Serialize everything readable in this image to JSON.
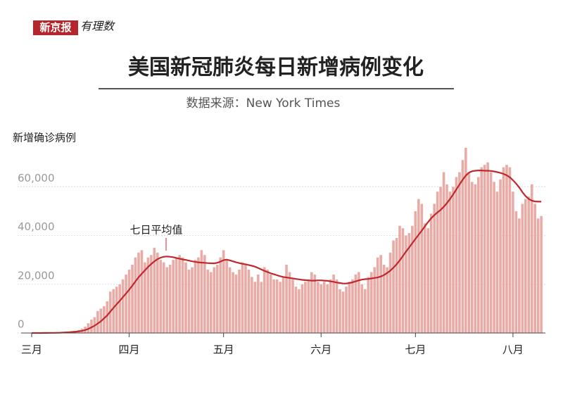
{
  "header": {
    "logo": "新京报",
    "logo_sub": "有理数"
  },
  "chart_data": {
    "type": "bar",
    "title": "美国新冠肺炎每日新增病例变化",
    "subtitle": "数据来源：New York Times",
    "y_label": "新增确诊病例",
    "categories": [
      "三月",
      null,
      null,
      null,
      null,
      null,
      null,
      null,
      null,
      null,
      null,
      null,
      null,
      null,
      null,
      null,
      null,
      null,
      null,
      null,
      null,
      null,
      null,
      null,
      null,
      null,
      null,
      null,
      null,
      null,
      null,
      "四月",
      null,
      null,
      null,
      null,
      null,
      null,
      null,
      null,
      null,
      null,
      null,
      null,
      null,
      null,
      null,
      null,
      null,
      null,
      null,
      null,
      null,
      null,
      null,
      null,
      null,
      null,
      null,
      null,
      null,
      "五月",
      null,
      null,
      null,
      null,
      null,
      null,
      null,
      null,
      null,
      null,
      null,
      null,
      null,
      null,
      null,
      null,
      null,
      null,
      null,
      null,
      null,
      null,
      null,
      null,
      null,
      null,
      null,
      null,
      null,
      null,
      "六月",
      null,
      null,
      null,
      null,
      null,
      null,
      null,
      null,
      null,
      null,
      null,
      null,
      null,
      null,
      null,
      null,
      null,
      null,
      null,
      null,
      null,
      null,
      null,
      null,
      null,
      null,
      null,
      null,
      null,
      "七月",
      null,
      null,
      null,
      null,
      null,
      null,
      null,
      null,
      null,
      null,
      null,
      null,
      null,
      null,
      null,
      null,
      null,
      null,
      null,
      null,
      null,
      null,
      null,
      null,
      null,
      null,
      null,
      null,
      null,
      null,
      "八月",
      null,
      null,
      null,
      null,
      null,
      null,
      null,
      null,
      null
    ],
    "series": [
      {
        "color": "#e9aba6",
        "values": [
          0,
          0,
          10,
          20,
          30,
          40,
          60,
          100,
          120,
          200,
          300,
          400,
          500,
          700,
          800,
          1200,
          1800,
          2600,
          4000,
          5500,
          6500,
          9000,
          10000,
          11000,
          13000,
          17000,
          18000,
          19000,
          20000,
          22000,
          24000,
          26000,
          28000,
          31000,
          33000,
          34000,
          29000,
          31000,
          32000,
          35000,
          33000,
          30000,
          29000,
          27000,
          28000,
          30000,
          31000,
          32000,
          31000,
          29000,
          26000,
          27000,
          30000,
          31000,
          34000,
          32000,
          26000,
          25000,
          27000,
          28000,
          31000,
          34000,
          30000,
          27000,
          25000,
          24000,
          26000,
          29000,
          28000,
          26000,
          23000,
          21000,
          24000,
          21000,
          27000,
          26000,
          24000,
          22000,
          22000,
          21000,
          23000,
          28000,
          25000,
          22000,
          19000,
          18000,
          20000,
          21000,
          22000,
          25000,
          24000,
          21000,
          20000,
          21000,
          20000,
          22000,
          24000,
          22000,
          18000,
          17000,
          19000,
          21000,
          22000,
          24000,
          25000,
          20000,
          18000,
          23000,
          25000,
          27000,
          31000,
          32000,
          28000,
          27000,
          33000,
          38000,
          39000,
          44000,
          43000,
          40000,
          41000,
          44000,
          50000,
          55000,
          53000,
          45000,
          43000,
          49000,
          53000,
          58000,
          60000,
          66000,
          61000,
          58000,
          60000,
          64000,
          66000,
          71000,
          76000,
          66000,
          62000,
          61000,
          64000,
          68000,
          69000,
          70000,
          66000,
          62000,
          58000,
          63000,
          68000,
          69000,
          68000,
          58000,
          50000,
          47000,
          53000,
          55000,
          56000,
          61000,
          53000,
          47000,
          48000
        ]
      },
      {
        "name": "七日平均值",
        "type": "line",
        "color": "#c0282d",
        "values": [
          0,
          0,
          0,
          10,
          20,
          30,
          50,
          70,
          100,
          130,
          200,
          260,
          330,
          430,
          540,
          700,
          900,
          1200,
          1700,
          2300,
          3000,
          3900,
          4800,
          6000,
          7200,
          8800,
          10300,
          11800,
          13200,
          14700,
          16200,
          17800,
          19400,
          21200,
          22900,
          24300,
          25700,
          27100,
          28300,
          29400,
          30300,
          30900,
          31300,
          31400,
          31300,
          31100,
          30800,
          30500,
          30200,
          30000,
          29700,
          29400,
          29200,
          29000,
          28900,
          28800,
          28700,
          28600,
          28600,
          28800,
          29300,
          29900,
          30100,
          29800,
          29400,
          29000,
          28700,
          28400,
          28200,
          27900,
          27600,
          27200,
          26700,
          26100,
          25500,
          25000,
          24500,
          24100,
          23700,
          23300,
          23000,
          22800,
          22600,
          22400,
          22200,
          22000,
          21800,
          21700,
          21600,
          21500,
          21500,
          21600,
          21600,
          21500,
          21400,
          21200,
          21000,
          20700,
          20500,
          20300,
          20300,
          20500,
          20800,
          21200,
          21600,
          21900,
          22100,
          22200,
          22400,
          22600,
          22800,
          23200,
          23800,
          24600,
          25600,
          26800,
          28200,
          29800,
          31600,
          33400,
          35100,
          36900,
          38600,
          40300,
          42000,
          43800,
          45500,
          47100,
          48400,
          49500,
          50500,
          51800,
          53300,
          55000,
          56900,
          58900,
          60900,
          62900,
          64600,
          65800,
          66400,
          66600,
          66700,
          66700,
          66600,
          66600,
          66500,
          66300,
          66000,
          65700,
          65300,
          64700,
          63900,
          62700,
          61300,
          59700,
          57800,
          56200,
          55000,
          54300,
          54000,
          53900,
          53900
        ]
      }
    ],
    "ylim": [
      0,
      78000
    ],
    "yticks": [
      0,
      {
        "value": 20000,
        "label": "20,000"
      },
      {
        "value": 40000,
        "label": "40,000"
      },
      {
        "value": 60000,
        "label": "60,000"
      }
    ],
    "grid": true
  }
}
